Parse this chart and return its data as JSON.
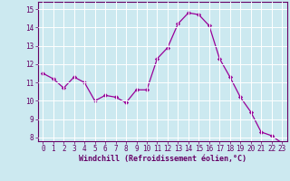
{
  "x": [
    0,
    1,
    2,
    3,
    4,
    5,
    6,
    7,
    8,
    9,
    10,
    11,
    12,
    13,
    14,
    15,
    16,
    17,
    18,
    19,
    20,
    21,
    22,
    23
  ],
  "y": [
    11.5,
    11.2,
    10.7,
    11.3,
    11.0,
    10.0,
    10.3,
    10.2,
    9.9,
    10.6,
    10.6,
    12.3,
    12.9,
    14.2,
    14.8,
    14.7,
    14.1,
    12.3,
    11.3,
    10.2,
    9.4,
    8.3,
    8.1,
    7.7
  ],
  "line_color": "#990099",
  "marker": "D",
  "marker_size": 2.2,
  "bg_color": "#cce9f0",
  "grid_color": "#ffffff",
  "xlabel": "Windchill (Refroidissement éolien,°C)",
  "xlabel_color": "#660066",
  "xlim": [
    -0.5,
    23.5
  ],
  "ylim": [
    7.8,
    15.4
  ],
  "yticks": [
    8,
    9,
    10,
    11,
    12,
    13,
    14,
    15
  ],
  "xticks": [
    0,
    1,
    2,
    3,
    4,
    5,
    6,
    7,
    8,
    9,
    10,
    11,
    12,
    13,
    14,
    15,
    16,
    17,
    18,
    19,
    20,
    21,
    22,
    23
  ],
  "tick_color": "#660066",
  "tick_labelsize": 5.5,
  "xlabel_fontsize": 6.0,
  "spine_color": "#660066",
  "line_width": 0.9
}
